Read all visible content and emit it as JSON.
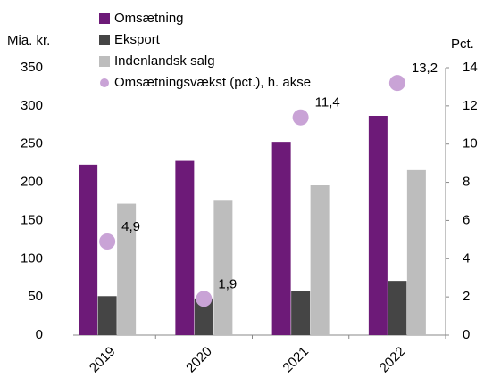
{
  "chart_data": {
    "type": "bar",
    "y_label": "Mia. kr.",
    "y2_label": "Pct.",
    "categories": [
      "2019",
      "2020",
      "2021",
      "2022"
    ],
    "series": [
      {
        "name": "Omsætning",
        "color": "#6d1a78",
        "values": [
          223,
          228,
          253,
          287
        ]
      },
      {
        "name": "Eksport",
        "color": "#454545",
        "values": [
          51,
          48,
          58,
          71
        ]
      },
      {
        "name": "Indenlandsk salg",
        "color": "#bdbdbd",
        "values": [
          172,
          177,
          196,
          216
        ]
      },
      {
        "name": "Omsætningsvækst (pct.), h. akse",
        "color": "#c9a3d6",
        "type": "scatter",
        "axis": "y2",
        "values": [
          4.9,
          1.9,
          11.4,
          13.2
        ],
        "value_labels": [
          "4,9",
          "1,9",
          "11,4",
          "13,2"
        ]
      }
    ],
    "ylim": [
      0,
      350
    ],
    "yticks": [
      0,
      50,
      100,
      150,
      200,
      250,
      300,
      350
    ],
    "y2lim": [
      0,
      14
    ],
    "y2ticks": [
      0,
      2,
      4,
      6,
      8,
      10,
      12,
      14
    ]
  }
}
